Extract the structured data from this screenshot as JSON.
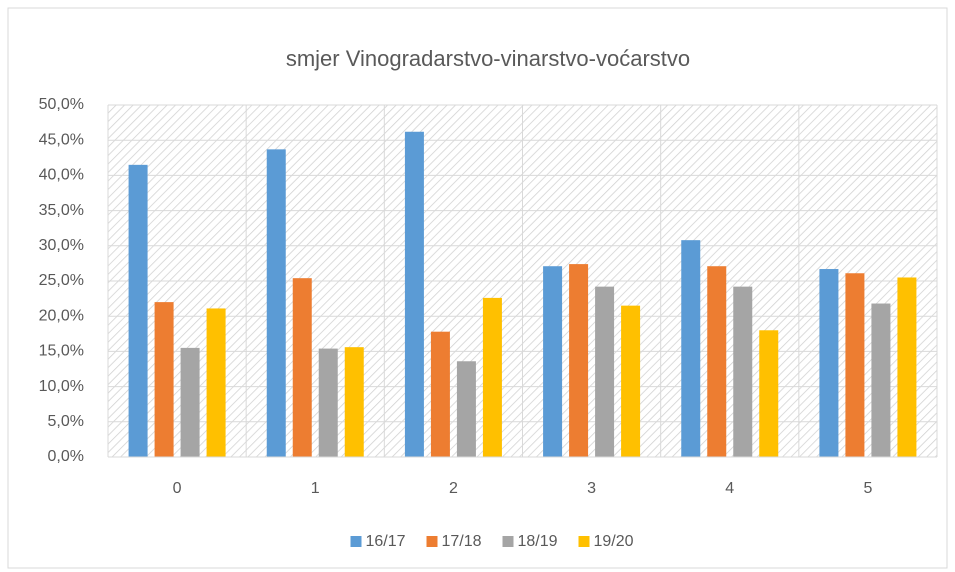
{
  "chart_data": {
    "type": "bar",
    "title": "smjer Vinogradarstvo-vinarstvo-voćarstvo",
    "categories": [
      "0",
      "1",
      "2",
      "3",
      "4",
      "5"
    ],
    "series": [
      {
        "name": "16/17",
        "color": "#5b9bd5",
        "values": [
          41.5,
          43.7,
          46.2,
          27.1,
          30.8,
          26.7
        ]
      },
      {
        "name": "17/18",
        "color": "#ed7d31",
        "values": [
          22.0,
          25.4,
          17.8,
          27.4,
          27.1,
          26.1
        ]
      },
      {
        "name": "18/19",
        "color": "#a5a5a5",
        "values": [
          15.5,
          15.4,
          13.6,
          24.2,
          24.2,
          21.8
        ]
      },
      {
        "name": "19/20",
        "color": "#ffc000",
        "values": [
          21.1,
          15.6,
          22.6,
          21.5,
          18.0,
          25.5
        ]
      }
    ],
    "ylim": [
      0,
      50
    ],
    "yticks": [
      {
        "value": 0,
        "label": "0,0%"
      },
      {
        "value": 5,
        "label": "5,0%"
      },
      {
        "value": 10,
        "label": "10,0%"
      },
      {
        "value": 15,
        "label": "15,0%"
      },
      {
        "value": 20,
        "label": "20,0%"
      },
      {
        "value": 25,
        "label": "25,0%"
      },
      {
        "value": 30,
        "label": "30,0%"
      },
      {
        "value": 35,
        "label": "35,0%"
      },
      {
        "value": 40,
        "label": "40,0%"
      },
      {
        "value": 45,
        "label": "45,0%"
      },
      {
        "value": 50,
        "label": "50,0%"
      }
    ],
    "grid": true,
    "legend": "bottom"
  }
}
